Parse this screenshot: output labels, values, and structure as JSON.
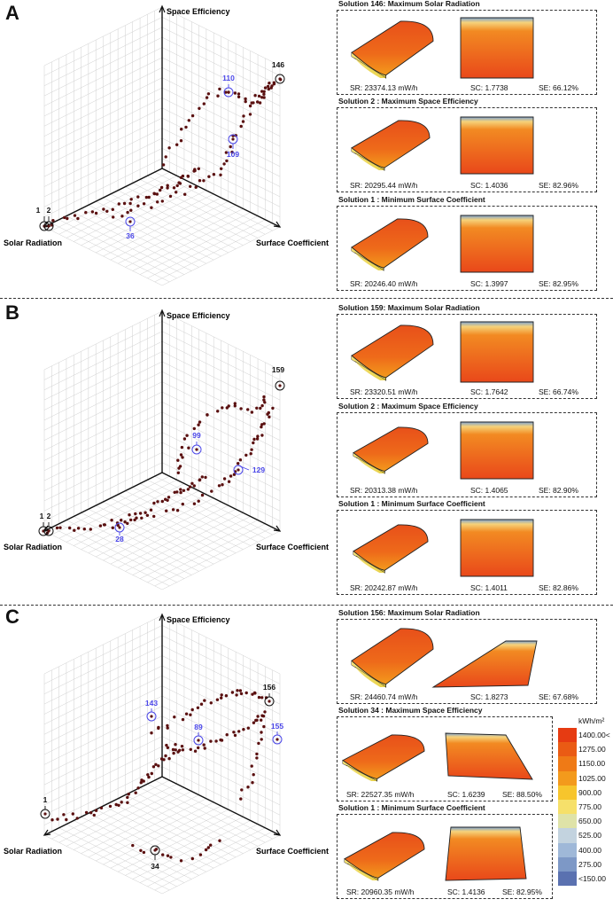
{
  "colors": {
    "accent_point": "#5a1010",
    "highlight": "#4a46e8",
    "frame": "#111111"
  },
  "axes": {
    "y": "Space Efficiency",
    "x": "Solar Radiation",
    "z": "Surface Coefficient"
  },
  "panels": [
    {
      "letter": "A",
      "labels": [
        {
          "text": "146",
          "kind": "black"
        },
        {
          "text": "110",
          "kind": "blue"
        },
        {
          "text": "109",
          "kind": "blue"
        },
        {
          "text": "36",
          "kind": "blue"
        },
        {
          "text": "1",
          "kind": "black"
        },
        {
          "text": "2",
          "kind": "black"
        }
      ],
      "solutions": [
        {
          "title": "Solution 146: Maximum Solar Radiation",
          "sr": "SR:  23374.13 mW/h",
          "sc": "SC:  1.7738",
          "se": "SE:  66.12%"
        },
        {
          "title": "Solution 2 : Maximum Space Efficiency",
          "sr": "SR:  20295.44 mW/h",
          "sc": "SC:  1.4036",
          "se": "SE:  82.96%"
        },
        {
          "title": "Solution 1 : Minimum Surface Coefficient",
          "sr": "SR:  20246.40 mW/h",
          "sc": "SC:  1.3997",
          "se": "SE:  82.95%"
        }
      ]
    },
    {
      "letter": "B",
      "labels": [
        {
          "text": "159",
          "kind": "black"
        },
        {
          "text": "99",
          "kind": "blue"
        },
        {
          "text": "129",
          "kind": "blue"
        },
        {
          "text": "28",
          "kind": "blue"
        },
        {
          "text": "1",
          "kind": "black"
        },
        {
          "text": "2",
          "kind": "black"
        }
      ],
      "solutions": [
        {
          "title": "Solution 159: Maximum Solar Radiation",
          "sr": "SR:  23320.51 mW/h",
          "sc": "SC:  1.7642",
          "se": "SE:  66.74%"
        },
        {
          "title": "Solution 2 : Maximum Space Efficiency",
          "sr": "SR:  20313.38 mW/h",
          "sc": "SC:  1.4065",
          "se": "SE:  82.90%"
        },
        {
          "title": "Solution 1 : Minimum Surface Coefficient",
          "sr": "SR:  20242.87 mW/h",
          "sc": "SC:  1.4011",
          "se": "SE:  82.86%"
        }
      ]
    },
    {
      "letter": "C",
      "labels": [
        {
          "text": "156",
          "kind": "black"
        },
        {
          "text": "143",
          "kind": "blue"
        },
        {
          "text": "89",
          "kind": "blue"
        },
        {
          "text": "155",
          "kind": "blue"
        },
        {
          "text": "1",
          "kind": "black"
        },
        {
          "text": "34",
          "kind": "black"
        }
      ],
      "solutions": [
        {
          "title": "Solution 156: Maximum Solar Radiation",
          "sr": "SR:  24460.74 mW/h",
          "sc": "SC:  1.8273",
          "se": "SE:  67.68%"
        },
        {
          "title": "Solution 34 : Maximum Space Efficiency",
          "sr": "SR:  22527.35 mW/h",
          "sc": "SC:  1.6239",
          "se": "SE:  88.50%"
        },
        {
          "title": "Solution 1 : Minimum Surface Coefficient",
          "sr": "SR:  20960.35 mW/h",
          "sc": "SC:  1.4136",
          "se": "SE:  82.95%"
        }
      ]
    }
  ],
  "legend": {
    "unit": "kWh/m²",
    "items": [
      {
        "label": "1400.00<",
        "color": "#e63b12"
      },
      {
        "label": "1275.00",
        "color": "#ea5b14"
      },
      {
        "label": "1150.00",
        "color": "#ef7a16"
      },
      {
        "label": "1025.00",
        "color": "#f39a1c"
      },
      {
        "label": "900.00",
        "color": "#f7c52c"
      },
      {
        "label": "775.00",
        "color": "#f6e06a"
      },
      {
        "label": "650.00",
        "color": "#dfe3a8"
      },
      {
        "label": "525.00",
        "color": "#c3d3df"
      },
      {
        "label": "400.00",
        "color": "#9fb8d8"
      },
      {
        "label": "275.00",
        "color": "#7d98c6"
      },
      {
        "label": "<150.00",
        "color": "#5a71b0"
      }
    ]
  }
}
